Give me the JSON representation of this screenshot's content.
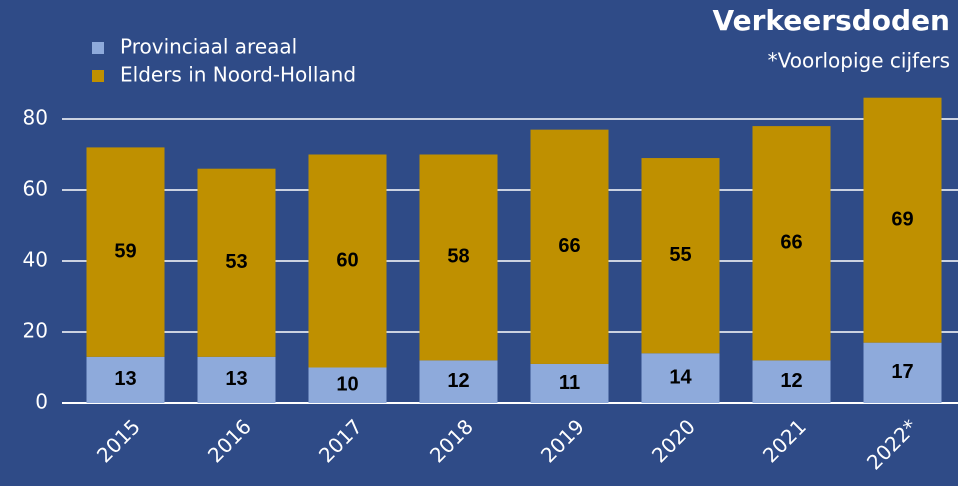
{
  "chart_data": {
    "type": "stacked_bar",
    "title": "Verkeersdoden",
    "subtitle": "*Voorlopige cijfers",
    "categories": [
      "2015",
      "2016",
      "2017",
      "2018",
      "2019",
      "2020",
      "2021",
      "2022*"
    ],
    "series": [
      {
        "name": "Provinciaal areaal",
        "color": "#8eaadb",
        "values": [
          13,
          13,
          10,
          12,
          11,
          14,
          12,
          17
        ]
      },
      {
        "name": "Elders in Noord-Holland",
        "color": "#bf9000",
        "values": [
          59,
          53,
          60,
          58,
          66,
          55,
          66,
          69
        ]
      }
    ],
    "ylim": [
      0,
      86
    ],
    "yticks": [
      0,
      20,
      40,
      60,
      80
    ],
    "grid": true,
    "legend": "top-left"
  }
}
